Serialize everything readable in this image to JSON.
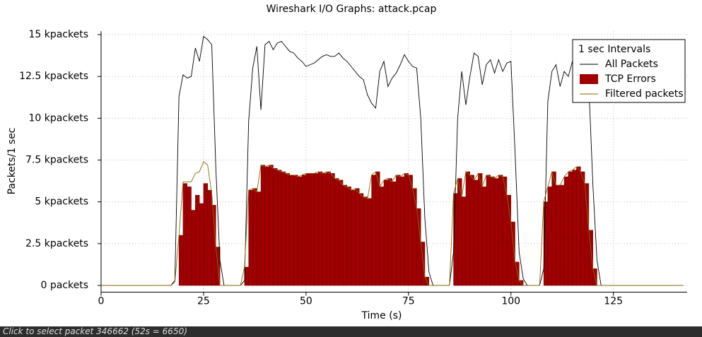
{
  "chart_data": {
    "type": "io-graph",
    "title": "Wireshark I/O Graphs: attack.pcap",
    "x_label": "Time (s)",
    "y_label": "Packets/1 sec",
    "legend_title": "1 sec Intervals",
    "legend_position": "top-right",
    "grid": true,
    "xlim": [
      0,
      143
    ],
    "ylim": [
      -400,
      15200
    ],
    "xticks": [
      0,
      25,
      50,
      75,
      100,
      125
    ],
    "yticks": [
      {
        "value": 0,
        "label": "0 packets"
      },
      {
        "value": 2500,
        "label": "2.5 kpackets"
      },
      {
        "value": 5000,
        "label": "5 kpackets"
      },
      {
        "value": 7500,
        "label": "7.5 kpackets"
      },
      {
        "value": 10000,
        "label": "10 kpackets"
      },
      {
        "value": 12500,
        "label": "12.5 kpackets"
      },
      {
        "value": 15000,
        "label": "15 kpackets"
      }
    ],
    "x": [
      0,
      1,
      2,
      3,
      4,
      5,
      6,
      7,
      8,
      9,
      10,
      11,
      12,
      13,
      14,
      15,
      16,
      17,
      18,
      19,
      20,
      21,
      22,
      23,
      24,
      25,
      26,
      27,
      28,
      29,
      30,
      31,
      32,
      33,
      34,
      35,
      36,
      37,
      38,
      39,
      40,
      41,
      42,
      43,
      44,
      45,
      46,
      47,
      48,
      49,
      50,
      51,
      52,
      53,
      54,
      55,
      56,
      57,
      58,
      59,
      60,
      61,
      62,
      63,
      64,
      65,
      66,
      67,
      68,
      69,
      70,
      71,
      72,
      73,
      74,
      75,
      76,
      77,
      78,
      79,
      80,
      81,
      82,
      83,
      84,
      85,
      86,
      87,
      88,
      89,
      90,
      91,
      92,
      93,
      94,
      95,
      96,
      97,
      98,
      99,
      100,
      101,
      102,
      103,
      104,
      105,
      106,
      107,
      108,
      109,
      110,
      111,
      112,
      113,
      114,
      115,
      116,
      117,
      118,
      119,
      120,
      121,
      122,
      123,
      124,
      125,
      126,
      127,
      128,
      129,
      130,
      131,
      132,
      133,
      134,
      135,
      136,
      137,
      138,
      139,
      140,
      141,
      142
    ],
    "series": [
      {
        "name": "All Packets",
        "kind": "line",
        "color": "#000000",
        "values": [
          0,
          0,
          0,
          0,
          0,
          0,
          0,
          0,
          0,
          0,
          0,
          0,
          0,
          0,
          0,
          0,
          0,
          0,
          300,
          11300,
          12600,
          12400,
          12500,
          14200,
          13400,
          14900,
          14700,
          14400,
          7000,
          1500,
          0,
          0,
          0,
          0,
          0,
          300,
          9800,
          13000,
          14300,
          10500,
          14400,
          14600,
          14100,
          14500,
          14600,
          14300,
          14000,
          13900,
          13600,
          13400,
          13100,
          13200,
          13300,
          13500,
          13700,
          13800,
          13700,
          13700,
          13900,
          13600,
          13400,
          13100,
          12800,
          12500,
          12300,
          11400,
          10900,
          10600,
          12800,
          13400,
          11900,
          12400,
          12700,
          13200,
          13800,
          13400,
          13100,
          13000,
          10000,
          4000,
          800,
          0,
          0,
          0,
          0,
          0,
          2000,
          10000,
          12800,
          10800,
          12500,
          13900,
          13700,
          12000,
          13200,
          13500,
          12700,
          13500,
          12800,
          13300,
          13400,
          8000,
          2000,
          400,
          0,
          0,
          0,
          0,
          1000,
          11000,
          12800,
          13200,
          11900,
          12800,
          12500,
          13400,
          13800,
          13800,
          13500,
          12000,
          6000,
          1500,
          0,
          0,
          0,
          0,
          0,
          0,
          0,
          0,
          0,
          0,
          0,
          0,
          0,
          0,
          0,
          0,
          0,
          0,
          0,
          0,
          0
        ]
      },
      {
        "name": "TCP Errors",
        "kind": "bar",
        "color": "#a00000",
        "values": [
          0,
          0,
          0,
          0,
          0,
          0,
          0,
          0,
          0,
          0,
          0,
          0,
          0,
          0,
          0,
          0,
          0,
          0,
          0,
          3000,
          6100,
          5900,
          4500,
          5400,
          4900,
          6100,
          5700,
          4800,
          2300,
          0,
          0,
          0,
          0,
          0,
          0,
          1100,
          5700,
          5800,
          5600,
          7200,
          7100,
          7200,
          7000,
          6900,
          6800,
          6700,
          6600,
          6600,
          6500,
          6600,
          6700,
          6700,
          6700,
          6800,
          6700,
          6800,
          6700,
          6400,
          6300,
          6000,
          5900,
          5700,
          5800,
          5500,
          5300,
          5200,
          6600,
          6800,
          5900,
          6300,
          6400,
          6200,
          6600,
          6500,
          6700,
          6600,
          5800,
          4600,
          2600,
          500,
          0,
          0,
          0,
          0,
          0,
          0,
          5500,
          6400,
          5300,
          6800,
          6600,
          6300,
          6700,
          5900,
          6600,
          6500,
          6400,
          6600,
          6500,
          5400,
          3800,
          1400,
          300,
          0,
          0,
          0,
          0,
          0,
          5000,
          5900,
          6800,
          6000,
          6000,
          6500,
          6800,
          6900,
          7100,
          6800,
          6100,
          3300,
          1000,
          0,
          0,
          0,
          0,
          0,
          0,
          0,
          0,
          0,
          0,
          0,
          0,
          0,
          0,
          0,
          0,
          0,
          0,
          0,
          0,
          0,
          0
        ]
      },
      {
        "name": "Filtered packets",
        "kind": "line",
        "color": "#8a6a00",
        "values": [
          0,
          0,
          0,
          0,
          0,
          0,
          0,
          0,
          0,
          0,
          0,
          0,
          0,
          0,
          0,
          0,
          0,
          0,
          200,
          3000,
          6200,
          6200,
          6200,
          6700,
          6800,
          7400,
          7200,
          5500,
          2300,
          0,
          0,
          0,
          0,
          0,
          0,
          1100,
          5700,
          5800,
          5600,
          7200,
          7100,
          7200,
          7000,
          6900,
          6800,
          6700,
          6600,
          6600,
          6500,
          6600,
          6700,
          6700,
          6700,
          6800,
          6700,
          6800,
          6700,
          6400,
          6300,
          6000,
          5900,
          5700,
          5800,
          5500,
          5300,
          5200,
          6600,
          6800,
          5900,
          6300,
          6400,
          6200,
          6600,
          6500,
          6700,
          6600,
          5800,
          4600,
          2600,
          500,
          0,
          0,
          0,
          0,
          0,
          0,
          5500,
          6400,
          5300,
          6800,
          6600,
          6300,
          6700,
          5900,
          6600,
          6500,
          6400,
          6600,
          6500,
          5400,
          3800,
          1400,
          300,
          0,
          0,
          0,
          0,
          0,
          5000,
          5900,
          6800,
          6000,
          6000,
          6500,
          6800,
          6900,
          7100,
          6800,
          6100,
          3300,
          1000,
          0,
          0,
          0,
          0,
          0,
          0,
          0,
          0,
          0,
          0,
          0,
          0,
          0,
          0,
          0,
          0,
          0,
          0,
          0,
          0,
          0,
          0
        ]
      }
    ]
  },
  "status_bar": "Click to select packet 346662 (52s = 6650)"
}
